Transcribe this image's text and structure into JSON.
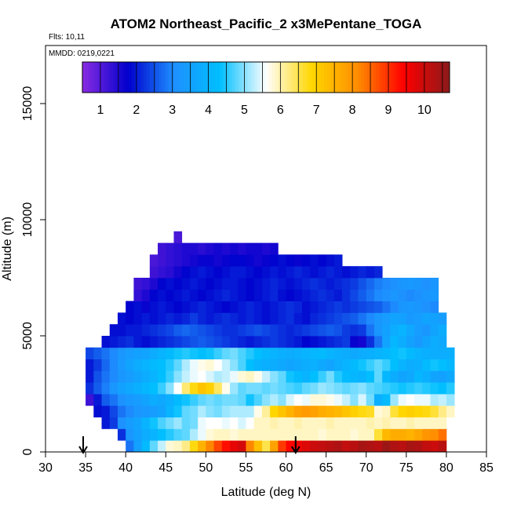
{
  "chart_data": {
    "type": "heatmap",
    "title": "ATOM2 Northeast_Pacific_2 x3MePentane_TOGA",
    "notes": [
      "Flts: 10,11",
      "MMDD: 0219,0221"
    ],
    "xlabel": "Latitude (deg N)",
    "ylabel": "Altitude (m)",
    "xlim": [
      30,
      85
    ],
    "ylim": [
      0,
      17500
    ],
    "x_ticks": [
      30,
      35,
      40,
      45,
      50,
      55,
      60,
      65,
      70,
      75,
      80,
      85
    ],
    "y_ticks": [
      0,
      5000,
      10000,
      15000
    ],
    "grid": false,
    "colorbar": {
      "placement": "top",
      "ticks": [
        1,
        2,
        3,
        4,
        5,
        6,
        7,
        8,
        9,
        10
      ],
      "range": [
        0.5,
        10.7
      ],
      "colors": [
        "#8a2be2",
        "#0000cd",
        "#1e90ff",
        "#00bfff",
        "#ffffff",
        "#ffd700",
        "#ff8c00",
        "#ff0000",
        "#8b1a1a"
      ]
    },
    "cell_size": {
      "lat": 1,
      "alt": 500
    },
    "altitude_bands": [
      {
        "alt": 0,
        "lat": [
          40,
          80
        ],
        "values": [
          2.8,
          3.5,
          4.2,
          4.8,
          5.3,
          5.8,
          5.9,
          6.2,
          6.8,
          7.5,
          8.2,
          8.8,
          9.3,
          9.7,
          9.9,
          8.2,
          7.3,
          6.5,
          7.8,
          8.9,
          9.4,
          9.6,
          9.8,
          10.0,
          10.1,
          10.2,
          10.3,
          10.1,
          10.2,
          10.4,
          10.3,
          10.2,
          10.5,
          10.3,
          10.2,
          10.4,
          10.3,
          10.1,
          10.0,
          10.2
        ]
      },
      {
        "alt": 500,
        "lat": [
          39,
          80
        ],
        "values": [
          2.2,
          3.2,
          3.5,
          3.8,
          4.0,
          4.3,
          4.5,
          4.7,
          4.8,
          5.2,
          5.5,
          5.8,
          5.9,
          5.9,
          5.8,
          5.9,
          5.9,
          5.9,
          5.9,
          5.9,
          5.9,
          5.9,
          5.9,
          5.9,
          5.9,
          5.8,
          5.9,
          5.9,
          5.9,
          5.8,
          5.9,
          5.9,
          6.6,
          7.4,
          7.6,
          7.6,
          7.5,
          7.7,
          8.0,
          8.1,
          8.4
        ]
      },
      {
        "alt": 1000,
        "lat": [
          37,
          80
        ],
        "values": [
          2.0,
          2.3,
          3.1,
          3.4,
          3.6,
          4.0,
          4.4,
          4.7,
          4.9,
          5.1,
          4.8,
          4.9,
          5.5,
          5.6,
          5.6,
          5.5,
          5.6,
          5.4,
          5.6,
          5.9,
          5.9,
          6.0,
          5.9,
          5.9,
          6.0,
          5.9,
          5.9,
          5.9,
          6.0,
          5.9,
          5.9,
          5.9,
          5.9,
          6.0,
          5.9,
          6.0,
          5.9,
          5.9,
          6.0,
          5.9,
          5.9,
          5.9,
          5.9
        ]
      },
      {
        "alt": 1500,
        "lat": [
          36,
          80
        ],
        "values": [
          1.9,
          2.0,
          2.4,
          2.8,
          3.0,
          3.2,
          3.3,
          3.4,
          3.6,
          4.0,
          4.4,
          4.8,
          4.9,
          5.2,
          5.0,
          4.9,
          5.1,
          5.2,
          5.2,
          5.2,
          5.7,
          6.1,
          6.9,
          7.2,
          7.5,
          7.8,
          7.9,
          7.8,
          7.6,
          7.5,
          7.4,
          7.2,
          7.0,
          6.8,
          6.7,
          5.8,
          5.9,
          6.6,
          6.9,
          7.0,
          6.9,
          6.8,
          6.6,
          6.2,
          5.9
        ]
      },
      {
        "alt": 2000,
        "lat": [
          35,
          80
        ],
        "values": [
          1.2,
          2.0,
          2.6,
          2.8,
          3.1,
          3.3,
          3.4,
          3.6,
          3.8,
          3.7,
          3.9,
          4.2,
          4.4,
          4.6,
          4.8,
          4.9,
          4.8,
          4.9,
          4.9,
          4.8,
          4.4,
          4.7,
          5.0,
          5.2,
          5.0,
          5.4,
          5.6,
          5.5,
          5.8,
          5.8,
          5.7,
          5.5,
          5.3,
          5.0,
          5.4,
          4.9,
          3.9,
          4.2,
          5.1,
          5.5,
          5.6,
          5.5,
          5.5,
          5.2,
          5.3,
          5.1
        ]
      },
      {
        "alt": 2500,
        "lat": [
          35,
          80
        ],
        "values": [
          2.2,
          2.6,
          2.9,
          3.2,
          3.5,
          3.7,
          3.9,
          4.1,
          4.3,
          4.6,
          5.0,
          5.6,
          6.3,
          6.8,
          7.2,
          7.0,
          6.4,
          5.7,
          5.1,
          4.8,
          4.9,
          4.9,
          4.8,
          4.9,
          4.8,
          4.7,
          4.6,
          4.8,
          4.9,
          5.1,
          5.0,
          4.9,
          4.8,
          4.9,
          5.0,
          4.8,
          4.7,
          4.6,
          4.5,
          4.4,
          4.5,
          4.6,
          4.5,
          4.4,
          4.3,
          4.5
        ]
      },
      {
        "alt": 3000,
        "lat": [
          35,
          80
        ],
        "values": [
          2.0,
          2.5,
          2.8,
          3.0,
          3.2,
          3.4,
          3.6,
          3.8,
          4.0,
          4.3,
          4.6,
          5.0,
          5.3,
          5.5,
          5.6,
          5.4,
          5.2,
          5.3,
          5.5,
          5.8,
          5.9,
          5.7,
          5.3,
          5.0,
          4.8,
          4.4,
          4.2,
          4.0,
          4.3,
          4.6,
          4.9,
          4.5,
          4.2,
          4.1,
          4.0,
          4.3,
          4.8,
          4.1,
          3.8,
          3.6,
          3.7,
          4.1,
          3.9,
          3.6,
          3.5,
          3.7
        ]
      },
      {
        "alt": 3500,
        "lat": [
          35,
          80
        ],
        "values": [
          2.0,
          2.3,
          2.7,
          3.0,
          3.3,
          3.6,
          3.8,
          4.0,
          4.2,
          4.3,
          4.5,
          4.8,
          5.2,
          5.5,
          5.7,
          5.8,
          5.6,
          5.3,
          5.0,
          4.7,
          4.3,
          4.0,
          3.9,
          3.8,
          3.7,
          3.6,
          3.7,
          3.8,
          3.9,
          3.7,
          3.6,
          3.8,
          4.0,
          4.2,
          4.4,
          4.6,
          4.8,
          4.6,
          4.3,
          4.0,
          3.8,
          3.9,
          4.2,
          4.4,
          4.3,
          4.1
        ]
      },
      {
        "alt": 4000,
        "lat": [
          35,
          80
        ],
        "values": [
          2.4,
          2.6,
          2.8,
          3.0,
          3.2,
          3.4,
          3.5,
          3.6,
          3.8,
          4.0,
          4.2,
          4.4,
          4.5,
          4.4,
          4.3,
          4.4,
          4.6,
          4.8,
          4.9,
          4.7,
          4.5,
          4.3,
          4.1,
          4.0,
          3.9,
          3.8,
          3.9,
          4.0,
          4.1,
          4.2,
          4.0,
          3.9,
          3.8,
          3.7,
          3.8,
          3.9,
          4.0,
          4.1,
          4.3,
          4.4,
          4.2,
          4.0,
          3.9,
          3.8,
          3.8,
          3.9
        ]
      },
      {
        "alt": 4500,
        "lat": [
          37,
          80
        ],
        "values": [
          1.9,
          2.0,
          2.1,
          2.2,
          2.0,
          1.9,
          2.0,
          2.1,
          2.2,
          2.3,
          2.4,
          2.5,
          2.6,
          2.5,
          2.4,
          2.3,
          2.2,
          2.1,
          2.0,
          2.1,
          2.2,
          2.3,
          2.2,
          2.1,
          2.0,
          1.8,
          1.9,
          2.0,
          2.1,
          2.2,
          2.3,
          1.7,
          1.6,
          2.2,
          2.8,
          3.6,
          4.1,
          3.8,
          3.5,
          3.3,
          3.6,
          3.8,
          3.7
        ]
      },
      {
        "alt": 5000,
        "lat": [
          38,
          80
        ],
        "values": [
          1.9,
          1.9,
          2.0,
          2.0,
          2.1,
          2.2,
          2.3,
          2.4,
          2.6,
          2.7,
          2.6,
          2.5,
          2.4,
          2.3,
          2.2,
          2.2,
          2.3,
          2.4,
          2.5,
          2.4,
          2.3,
          2.2,
          2.1,
          2.2,
          2.3,
          2.4,
          2.5,
          2.6,
          2.5,
          2.3,
          2.2,
          2.3,
          2.8,
          3.2,
          3.5,
          3.8,
          4.0,
          3.7,
          3.4,
          3.2,
          3.6,
          3.8
        ]
      },
      {
        "alt": 5500,
        "lat": [
          39,
          80
        ],
        "values": [
          1.9,
          1.8,
          1.9,
          2.0,
          1.9,
          2.0,
          2.1,
          2.0,
          2.1,
          2.3,
          2.1,
          2.0,
          2.1,
          2.2,
          2.1,
          2.0,
          2.1,
          2.0,
          1.9,
          2.0,
          2.1,
          2.2,
          2.0,
          1.9,
          2.1,
          2.2,
          2.3,
          2.4,
          2.5,
          2.6,
          2.8,
          3.0,
          3.2,
          3.4,
          3.6,
          3.5,
          3.3,
          3.4,
          3.6,
          3.5,
          3.4
        ]
      },
      {
        "alt": 6000,
        "lat": [
          40,
          79
        ],
        "values": [
          1.8,
          1.9,
          1.7,
          1.9,
          2.0,
          1.9,
          1.8,
          1.9,
          2.0,
          2.1,
          2.0,
          1.9,
          1.8,
          1.9,
          2.0,
          2.1,
          2.0,
          1.9,
          2.0,
          2.1,
          2.2,
          2.1,
          1.9,
          2.0,
          2.1,
          2.2,
          2.3,
          2.2,
          2.3,
          2.4,
          2.5,
          2.6,
          2.8,
          3.0,
          3.2,
          3.3,
          3.2,
          3.1,
          3.0
        ]
      },
      {
        "alt": 6500,
        "lat": [
          41,
          79
        ],
        "values": [
          1.3,
          1.5,
          1.8,
          1.9,
          1.8,
          1.9,
          2.0,
          1.9,
          1.8,
          1.9,
          2.0,
          2.1,
          2.0,
          1.9,
          1.8,
          1.9,
          2.0,
          2.1,
          1.9,
          1.8,
          1.9,
          2.0,
          2.1,
          2.2,
          2.1,
          2.0,
          2.2,
          2.4,
          2.6,
          2.8,
          3.0,
          3.1,
          3.2,
          3.1,
          3.0,
          3.1,
          3.2,
          3.3
        ]
      },
      {
        "alt": 7000,
        "lat": [
          41,
          79
        ],
        "values": [
          1.2,
          1.3,
          1.5,
          1.8,
          1.9,
          1.8,
          1.9,
          2.0,
          1.9,
          1.8,
          1.9,
          2.0,
          2.0,
          1.9,
          1.8,
          1.9,
          2.0,
          2.1,
          2.0,
          1.9,
          2.0,
          2.1,
          2.2,
          2.1,
          2.0,
          2.1,
          2.2,
          2.3,
          2.5,
          2.7,
          2.9,
          3.0,
          3.1,
          3.2,
          3.3,
          3.2,
          3.1,
          3.2
        ]
      },
      {
        "alt": 7500,
        "lat": [
          43,
          72
        ],
        "values": [
          1.2,
          1.3,
          1.4,
          1.6,
          1.8,
          1.9,
          2.0,
          1.9,
          1.8,
          1.9,
          2.0,
          2.0,
          1.9,
          1.8,
          1.9,
          2.0,
          1.9,
          2.0,
          2.1,
          2.0,
          1.9,
          2.0,
          2.1,
          2.0,
          1.9,
          2.0,
          2.1,
          2.0,
          2.1
        ]
      },
      {
        "alt": 8000,
        "lat": [
          43,
          67
        ],
        "values": [
          1.1,
          1.2,
          1.3,
          1.4,
          1.5,
          1.6,
          1.7,
          1.7,
          1.6,
          1.7,
          1.8,
          1.8,
          1.7,
          1.6,
          1.7,
          1.8,
          1.9,
          1.8,
          1.7,
          1.8,
          1.9,
          1.8,
          1.9,
          2.0
        ]
      },
      {
        "alt": 8500,
        "lat": [
          44,
          59
        ],
        "values": [
          1.2,
          1.3,
          1.4,
          1.5,
          1.5,
          1.4,
          1.5,
          1.6,
          1.5,
          1.6,
          1.5,
          1.6,
          1.6,
          1.5,
          1.6
        ]
      },
      {
        "alt": 9000,
        "lat": [
          46,
          47
        ],
        "values": [
          1.1
        ]
      }
    ],
    "markers": [
      {
        "label": "down-arrow",
        "lat": 34.7
      },
      {
        "label": "down-arrow",
        "lat": 61.2
      }
    ]
  }
}
